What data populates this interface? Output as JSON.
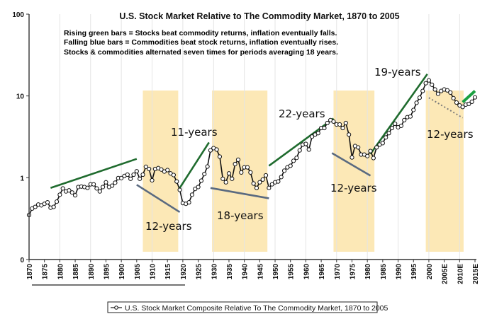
{
  "chart_data": {
    "type": "line",
    "title": "U.S. Stock Market Relative to The Commodity Market, 1870 to 2005",
    "notes": [
      {
        "text": "Rising green bars = Stocks beat commodity returns, inflation eventually falls.",
        "color": "#2e8b3e"
      },
      {
        "text": "Falling blue bars = Commodities beat stock returns, inflation eventually rises.",
        "color": "#2b3a8c"
      },
      {
        "text": "Stocks & commodities alternated seven times for periods averaging 18 years.",
        "color": "#111111"
      }
    ],
    "xlabel": "",
    "ylabel": "",
    "yscale": "log",
    "ylim": [
      0.1,
      100
    ],
    "y_ticks": [
      {
        "value": 0.1,
        "label": "0"
      },
      {
        "value": 1,
        "label": "1"
      },
      {
        "value": 10,
        "label": "10"
      },
      {
        "value": 100,
        "label": "100"
      }
    ],
    "xlim": [
      1870,
      2015
    ],
    "x_ticks": [
      {
        "value": 1870,
        "label": "1870"
      },
      {
        "value": 1875,
        "label": "1875"
      },
      {
        "value": 1880,
        "label": "1880"
      },
      {
        "value": 1885,
        "label": "1885"
      },
      {
        "value": 1890,
        "label": "1890"
      },
      {
        "value": 1895,
        "label": "1895"
      },
      {
        "value": 1900,
        "label": "1900"
      },
      {
        "value": 1905,
        "label": "1905"
      },
      {
        "value": 1910,
        "label": "1910"
      },
      {
        "value": 1915,
        "label": "1915"
      },
      {
        "value": 1920,
        "label": "1920"
      },
      {
        "value": 1925,
        "label": "1925"
      },
      {
        "value": 1930,
        "label": "1930"
      },
      {
        "value": 1935,
        "label": "1935"
      },
      {
        "value": 1940,
        "label": "1940"
      },
      {
        "value": 1945,
        "label": "1945"
      },
      {
        "value": 1950,
        "label": "1950"
      },
      {
        "value": 1955,
        "label": "1955"
      },
      {
        "value": 1960,
        "label": "1960"
      },
      {
        "value": 1965,
        "label": "1965"
      },
      {
        "value": 1970,
        "label": "1970"
      },
      {
        "value": 1975,
        "label": "1975"
      },
      {
        "value": 1980,
        "label": "1980"
      },
      {
        "value": 1985,
        "label": "1985"
      },
      {
        "value": 1990,
        "label": "1990"
      },
      {
        "value": 1995,
        "label": "1995"
      },
      {
        "value": 2000,
        "label": "2000"
      },
      {
        "value": 2005,
        "label": "2005E"
      },
      {
        "value": 2010,
        "label": "2010E"
      },
      {
        "value": 2015,
        "label": "2015E"
      }
    ],
    "grid": "vertical",
    "legend": {
      "position": "bottom-center",
      "entries": [
        "U.S. Stock Market Composite Relative To The Commodity Market, 1870 to 2005"
      ]
    },
    "series": [
      {
        "name": "U.S. Stock Market Composite Relative To The Commodity Market, 1870 to 2005",
        "color": "#111111",
        "x": [
          1870,
          1871,
          1872,
          1873,
          1874,
          1875,
          1876,
          1877,
          1878,
          1879,
          1880,
          1881,
          1882,
          1883,
          1884,
          1885,
          1886,
          1887,
          1888,
          1889,
          1890,
          1891,
          1892,
          1893,
          1894,
          1895,
          1896,
          1897,
          1898,
          1899,
          1900,
          1901,
          1902,
          1903,
          1904,
          1905,
          1906,
          1907,
          1908,
          1909,
          1910,
          1911,
          1912,
          1913,
          1914,
          1915,
          1916,
          1917,
          1918,
          1919,
          1920,
          1921,
          1922,
          1923,
          1924,
          1925,
          1926,
          1927,
          1928,
          1929,
          1930,
          1931,
          1932,
          1933,
          1934,
          1935,
          1936,
          1937,
          1938,
          1939,
          1940,
          1941,
          1942,
          1943,
          1944,
          1945,
          1946,
          1947,
          1948,
          1949,
          1950,
          1951,
          1952,
          1953,
          1954,
          1955,
          1956,
          1957,
          1958,
          1959,
          1960,
          1961,
          1962,
          1963,
          1964,
          1965,
          1966,
          1967,
          1968,
          1969,
          1970,
          1971,
          1972,
          1973,
          1974,
          1975,
          1976,
          1977,
          1978,
          1979,
          1980,
          1981,
          1982,
          1983,
          1984,
          1985,
          1986,
          1987,
          1988,
          1989,
          1990,
          1991,
          1992,
          1993,
          1994,
          1995,
          1996,
          1997,
          1998,
          1999,
          2000,
          2001,
          2002,
          2003,
          2004,
          2005,
          2006,
          2007,
          2008,
          2009,
          2010,
          2011,
          2012,
          2013,
          2014,
          2015
        ],
        "values": [
          0.35,
          0.42,
          0.44,
          0.47,
          0.46,
          0.48,
          0.5,
          0.43,
          0.44,
          0.51,
          0.62,
          0.74,
          0.68,
          0.7,
          0.66,
          0.61,
          0.77,
          0.78,
          0.77,
          0.75,
          0.83,
          0.83,
          0.74,
          0.68,
          0.77,
          0.88,
          0.77,
          0.8,
          0.87,
          0.99,
          0.99,
          1.05,
          1.09,
          0.97,
          1.09,
          1.2,
          0.97,
          1.09,
          1.36,
          1.28,
          0.93,
          1.28,
          1.31,
          1.26,
          1.19,
          1.24,
          1.13,
          1.08,
          0.9,
          0.71,
          0.49,
          0.48,
          0.5,
          0.62,
          0.73,
          0.77,
          0.92,
          1.11,
          1.37,
          2.16,
          2.3,
          2.21,
          1.81,
          0.97,
          0.88,
          1.13,
          0.97,
          1.47,
          1.66,
          1.16,
          1.34,
          1.34,
          1.16,
          0.85,
          0.75,
          0.88,
          0.95,
          1.07,
          0.75,
          0.83,
          0.88,
          0.9,
          1.02,
          1.22,
          1.34,
          1.4,
          1.61,
          1.75,
          2.16,
          2.54,
          2.59,
          2.21,
          3.18,
          3.37,
          3.51,
          4.05,
          4.05,
          4.67,
          5.06,
          4.86,
          4.48,
          4.48,
          4.05,
          4.67,
          3.37,
          1.77,
          2.44,
          2.35,
          1.92,
          1.92,
          1.84,
          2.12,
          1.74,
          2.35,
          2.54,
          2.65,
          3.11,
          3.51,
          4.05,
          4.57,
          4.14,
          4.31,
          5.06,
          5.5,
          5.61,
          6.74,
          8.24,
          9.52,
          11.5,
          14.3,
          15.5,
          13.7,
          12.0,
          10.6,
          11.5,
          12.0,
          11.7,
          11.0,
          9.39,
          8.3,
          7.66,
          7.33,
          7.83,
          7.99,
          8.49,
          9.61
        ]
      }
    ],
    "shaded_periods": [
      {
        "start": 1907,
        "end": 1918.5,
        "label": "12-years",
        "color": "#fce8b6"
      },
      {
        "start": 1929.5,
        "end": 1947.5,
        "label": "18-years",
        "color": "#fce8b6"
      },
      {
        "start": 1969,
        "end": 1982.3,
        "label": "12-years",
        "color": "#fce8b6"
      },
      {
        "start": 1999,
        "end": 2011.3,
        "label": "12-years",
        "color": "#fce8b6"
      }
    ],
    "trend_lines": [
      {
        "kind": "rising",
        "color": "#1f6b2e",
        "from": [
          1877,
          0.75
        ],
        "to": [
          1905,
          1.7
        ],
        "label": ""
      },
      {
        "kind": "falling",
        "color": "#5a6a80",
        "from": [
          1905,
          0.82
        ],
        "to": [
          1919,
          0.38
        ],
        "label": "12-years"
      },
      {
        "kind": "rising",
        "color": "#1f6b2e",
        "from": [
          1919,
          0.75
        ],
        "to": [
          1928.5,
          2.7
        ],
        "label": "11-years"
      },
      {
        "kind": "falling",
        "color": "#5a6a80",
        "from": [
          1929,
          0.75
        ],
        "to": [
          1948,
          0.56
        ],
        "label": "18-years"
      },
      {
        "kind": "rising",
        "color": "#1f6b2e",
        "from": [
          1948,
          1.4
        ],
        "to": [
          1969,
          5.3
        ],
        "label": "22-years"
      },
      {
        "kind": "falling",
        "color": "#5a6a80",
        "from": [
          1968.5,
          2.0
        ],
        "to": [
          1981,
          1.06
        ],
        "label": "12-years"
      },
      {
        "kind": "rising",
        "color": "#1f6b2e",
        "from": [
          1981,
          1.95
        ],
        "to": [
          1999.5,
          18.5
        ],
        "label": "19-years"
      },
      {
        "kind": "falling-dotted",
        "color": "#7a7a7a",
        "from": [
          2000,
          9.5
        ],
        "to": [
          2011,
          5.4
        ],
        "label": "12-years"
      },
      {
        "kind": "rising",
        "color": "#1aa040",
        "from": [
          2011,
          8.4
        ],
        "to": [
          2015,
          11.5
        ],
        "label": ""
      }
    ]
  }
}
